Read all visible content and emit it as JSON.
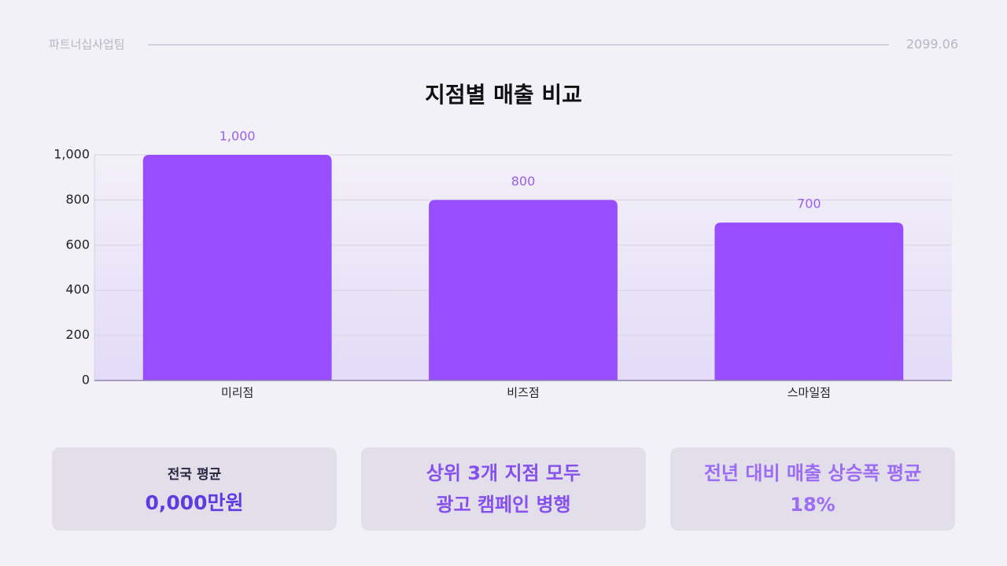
{
  "header": {
    "team": "파트너십사업팀",
    "date": "2099.06"
  },
  "chart_data": {
    "type": "bar",
    "title": "지점별 매출 비교",
    "categories": [
      "미리점",
      "비즈점",
      "스마일점"
    ],
    "values": [
      1000,
      800,
      700
    ],
    "value_labels": [
      "1,000",
      "800",
      "700"
    ],
    "color": "#984dff",
    "ylim": [
      0,
      1000
    ],
    "yticks": [
      0,
      200,
      400,
      600,
      800,
      {
        "value": 1000,
        "label": "1,000"
      }
    ],
    "grid": true
  },
  "cards": [
    {
      "label": "전국 평균",
      "value": "0,000만원"
    },
    {
      "lines": [
        "상위 3개 지점 모두",
        "광고 캠페인 병행"
      ]
    },
    {
      "lines": [
        "전년 대비 매출 상승폭 평균",
        "18%"
      ]
    }
  ]
}
